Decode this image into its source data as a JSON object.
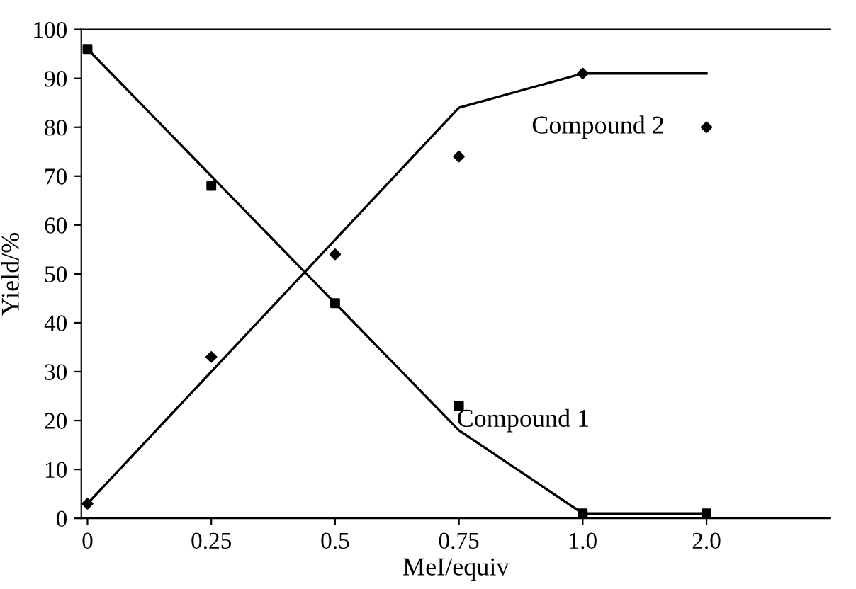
{
  "chart_data": {
    "type": "scatter",
    "xlabel": "MeI/equiv",
    "ylabel": "Yield/%",
    "categories": [
      "0",
      "0.25",
      "0.5",
      "0.75",
      "1.0",
      "2.0"
    ],
    "series": [
      {
        "marker": "square",
        "color": "#000000",
        "values": [
          96,
          68,
          44,
          23,
          1,
          1
        ]
      },
      {
        "marker": "diamond",
        "color": "#000000",
        "values": [
          3,
          33,
          54,
          74,
          91,
          80
        ]
      },
      {
        "type": "line",
        "marker": "none",
        "color": "#000000",
        "values": [
          96,
          70,
          44,
          18,
          1,
          1
        ]
      },
      {
        "type": "line",
        "marker": "none",
        "color": "#000000",
        "values": [
          3,
          30,
          57,
          84,
          91,
          91
        ]
      }
    ],
    "ylim": [
      0,
      100
    ],
    "yticks": [
      0,
      10,
      20,
      30,
      40,
      50,
      60,
      70,
      80,
      90,
      100
    ],
    "grid": false,
    "legend": false,
    "annotations": [
      "Compound 2",
      "Compound 1"
    ]
  }
}
